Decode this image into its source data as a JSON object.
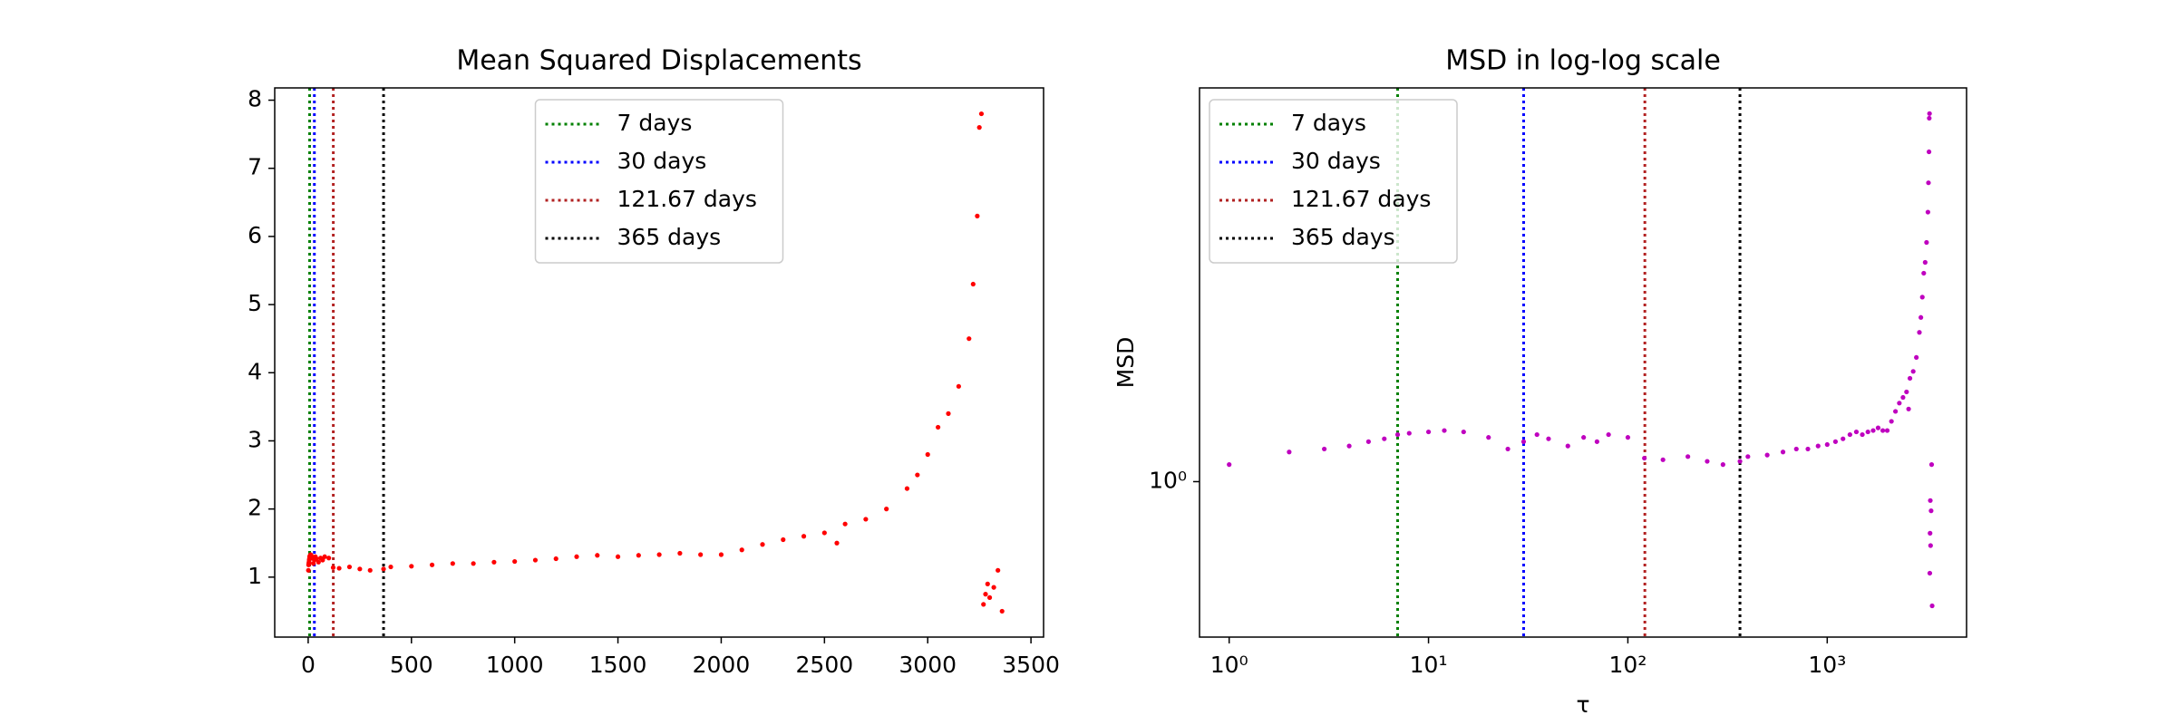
{
  "chart_data": [
    {
      "type": "scatter",
      "title": "Mean Squared Displacements",
      "color": "#ff0000",
      "log": false,
      "xlim": [
        -162,
        3561
      ],
      "ylim": [
        0.12,
        8.18
      ],
      "xticks": [
        0,
        500,
        1000,
        1500,
        2000,
        2500,
        3000,
        3500
      ],
      "yticks": [
        1,
        2,
        3,
        4,
        5,
        6,
        7,
        8
      ],
      "legend": "upper center",
      "reference_lines": [
        {
          "x": 7,
          "label": "7 days",
          "color": "#008000"
        },
        {
          "x": 30,
          "label": "30 days",
          "color": "#0000ff"
        },
        {
          "x": 121.67,
          "label": "121.67 days",
          "color": "#b22222"
        },
        {
          "x": 365,
          "label": "365 days",
          "color": "#000000"
        }
      ],
      "x": [
        1,
        2,
        3,
        4,
        5,
        6,
        7,
        8,
        10,
        12,
        15,
        20,
        25,
        30,
        35,
        40,
        50,
        60,
        70,
        80,
        100,
        121,
        150,
        200,
        250,
        300,
        365,
        400,
        500,
        600,
        700,
        800,
        900,
        1000,
        1100,
        1200,
        1300,
        1400,
        1500,
        1600,
        1700,
        1800,
        1900,
        2000,
        2100,
        2200,
        2300,
        2400,
        2500,
        2560,
        2600,
        2700,
        2800,
        2900,
        2950,
        3000,
        3050,
        3100,
        3150,
        3200,
        3220,
        3240,
        3250,
        3260,
        3270,
        3280,
        3290,
        3300,
        3320,
        3340,
        3360
      ],
      "values": [
        1.1,
        1.18,
        1.2,
        1.22,
        1.25,
        1.27,
        1.3,
        1.31,
        1.32,
        1.33,
        1.32,
        1.28,
        1.2,
        1.25,
        1.3,
        1.27,
        1.22,
        1.28,
        1.25,
        1.3,
        1.28,
        1.14,
        1.13,
        1.15,
        1.12,
        1.1,
        1.12,
        1.15,
        1.16,
        1.18,
        1.2,
        1.2,
        1.22,
        1.23,
        1.25,
        1.27,
        1.3,
        1.32,
        1.3,
        1.32,
        1.33,
        1.35,
        1.33,
        1.33,
        1.4,
        1.48,
        1.55,
        1.6,
        1.65,
        1.5,
        1.78,
        1.85,
        2.0,
        2.3,
        2.5,
        2.8,
        3.2,
        3.4,
        3.8,
        4.5,
        5.3,
        6.3,
        7.6,
        7.8,
        0.6,
        0.75,
        0.9,
        0.7,
        0.85,
        1.1,
        0.5
      ]
    },
    {
      "type": "scatter",
      "title": "MSD in log-log scale",
      "xlabel": "τ",
      "ylabel": "MSD",
      "color": "#bf00bf",
      "log": true,
      "xlim": [
        0.71,
        5000
      ],
      "ylim": [
        0.42,
        9
      ],
      "xticks": [
        {
          "value": 1,
          "label": "10⁰"
        },
        {
          "value": 10,
          "label": "10¹"
        },
        {
          "value": 100,
          "label": "10²"
        },
        {
          "value": 1000,
          "label": "10³"
        }
      ],
      "yticks": [
        {
          "value": 1,
          "label": "10⁰"
        }
      ],
      "legend": "upper left",
      "reference_lines": [
        {
          "x": 7,
          "label": "7 days",
          "color": "#008000"
        },
        {
          "x": 30,
          "label": "30 days",
          "color": "#0000ff"
        },
        {
          "x": 121.67,
          "label": "121.67 days",
          "color": "#b22222"
        },
        {
          "x": 365,
          "label": "365 days",
          "color": "#000000"
        }
      ],
      "x": [
        1,
        2,
        3,
        4,
        5,
        6,
        7,
        8,
        10,
        12,
        15,
        20,
        25,
        30,
        35,
        40,
        50,
        60,
        70,
        80,
        100,
        121,
        150,
        200,
        250,
        300,
        365,
        400,
        500,
        600,
        700,
        800,
        900,
        1000,
        1100,
        1200,
        1300,
        1400,
        1500,
        1600,
        1700,
        1800,
        1900,
        2000,
        2100,
        2200,
        2300,
        2400,
        2500,
        2560,
        2600,
        2700,
        2800,
        2900,
        2950,
        3000,
        3050,
        3100,
        3150,
        3200,
        3220,
        3240,
        3250,
        3260,
        3270,
        3280,
        3290,
        3300,
        3320,
        3340,
        3360
      ],
      "values": [
        1.1,
        1.18,
        1.2,
        1.22,
        1.25,
        1.27,
        1.3,
        1.31,
        1.32,
        1.33,
        1.32,
        1.28,
        1.2,
        1.25,
        1.3,
        1.27,
        1.22,
        1.28,
        1.25,
        1.3,
        1.28,
        1.14,
        1.13,
        1.15,
        1.12,
        1.1,
        1.12,
        1.15,
        1.16,
        1.18,
        1.2,
        1.2,
        1.22,
        1.23,
        1.25,
        1.27,
        1.3,
        1.32,
        1.3,
        1.32,
        1.33,
        1.35,
        1.33,
        1.33,
        1.4,
        1.48,
        1.55,
        1.6,
        1.65,
        1.5,
        1.78,
        1.85,
        2.0,
        2.3,
        2.5,
        2.8,
        3.2,
        3.4,
        3.8,
        4.5,
        5.3,
        6.3,
        7.6,
        7.8,
        0.6,
        0.75,
        0.9,
        0.7,
        0.85,
        1.1,
        0.5
      ]
    }
  ]
}
